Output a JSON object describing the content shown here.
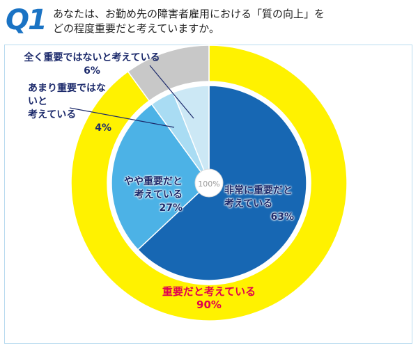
{
  "header": {
    "badge": "Q1",
    "question": "あなたは、お勤め先の障害者雇用における「質の向上」を\nどの程度重要だと考えていますか。"
  },
  "chart_data": {
    "type": "pie",
    "center_label": "100%",
    "series": [
      {
        "categories": [
          "非常に重要だと\n考えている",
          "やや重要だと\n考えている",
          "あまり重要ではないと\n考えている",
          "全く重要ではないと考えている"
        ],
        "values": [
          63,
          27,
          4,
          6
        ],
        "value_labels": [
          "63%",
          "27%",
          "4%",
          "6%"
        ],
        "colors": [
          "#1767b3",
          "#4cb2e6",
          "#a9dcf3",
          "#cce8f5"
        ]
      },
      {
        "categories": [
          "重要だと考えている",
          null
        ],
        "values": [
          90,
          10
        ],
        "value_labels": [
          "90%",
          null
        ],
        "colors": [
          "#fff200",
          "#c8c8c8"
        ]
      }
    ]
  }
}
